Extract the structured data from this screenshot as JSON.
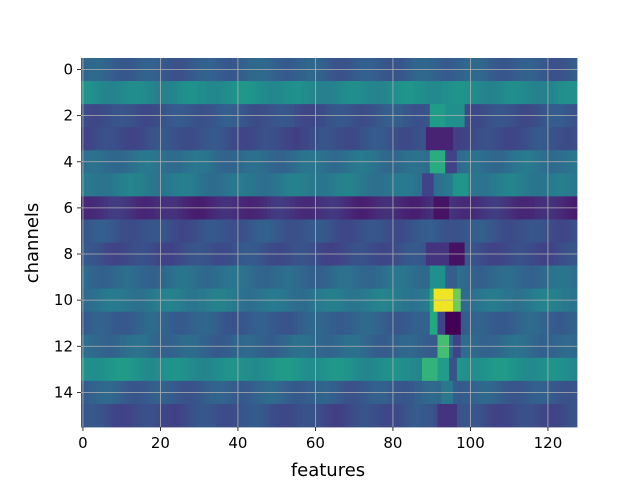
{
  "chart_data": {
    "type": "heatmap",
    "title": "",
    "xlabel": "features",
    "ylabel": "channels",
    "xlim": [
      -0.5,
      127.5
    ],
    "ylim": [
      15.5,
      -0.5
    ],
    "y_inverted": true,
    "grid": true,
    "colormap": "viridis",
    "value_range": [
      0,
      1
    ],
    "x_ticks": [
      0,
      20,
      40,
      60,
      80,
      100,
      120
    ],
    "y_ticks": [
      0,
      2,
      4,
      6,
      8,
      10,
      12,
      14
    ],
    "n_features": 128,
    "n_channels": 16,
    "row_base_values": [
      0.3,
      0.48,
      0.26,
      0.24,
      0.36,
      0.4,
      0.13,
      0.26,
      0.24,
      0.35,
      0.4,
      0.3,
      0.33,
      0.5,
      0.3,
      0.24
    ],
    "cells": [
      {
        "channel": 2,
        "feature_range": [
          90,
          93
        ],
        "value": 0.55
      },
      {
        "channel": 2,
        "feature_range": [
          94,
          98
        ],
        "value": 0.5
      },
      {
        "channel": 3,
        "feature_range": [
          89,
          95
        ],
        "value": 0.1
      },
      {
        "channel": 4,
        "feature_range": [
          90,
          93
        ],
        "value": 0.62
      },
      {
        "channel": 4,
        "feature_range": [
          94,
          96
        ],
        "value": 0.2
      },
      {
        "channel": 5,
        "feature_range": [
          88,
          90
        ],
        "value": 0.2
      },
      {
        "channel": 5,
        "feature_range": [
          96,
          99
        ],
        "value": 0.52
      },
      {
        "channel": 6,
        "feature_range": [
          91,
          94
        ],
        "value": 0.05
      },
      {
        "channel": 8,
        "feature_range": [
          89,
          94
        ],
        "value": 0.15
      },
      {
        "channel": 8,
        "feature_range": [
          95,
          98
        ],
        "value": 0.05
      },
      {
        "channel": 9,
        "feature_range": [
          90,
          93
        ],
        "value": 0.5
      },
      {
        "channel": 9,
        "feature_range": [
          94,
          96
        ],
        "value": 0.3
      },
      {
        "channel": 10,
        "feature_range": [
          90,
          90
        ],
        "value": 0.6
      },
      {
        "channel": 10,
        "feature_range": [
          91,
          95
        ],
        "value": 0.98
      },
      {
        "channel": 10,
        "feature_range": [
          96,
          97
        ],
        "value": 0.78
      },
      {
        "channel": 11,
        "feature_range": [
          90,
          91
        ],
        "value": 0.6
      },
      {
        "channel": 11,
        "feature_range": [
          92,
          93
        ],
        "value": 0.2
      },
      {
        "channel": 11,
        "feature_range": [
          94,
          97
        ],
        "value": 0.0
      },
      {
        "channel": 12,
        "feature_range": [
          92,
          94
        ],
        "value": 0.7
      },
      {
        "channel": 12,
        "feature_range": [
          96,
          97
        ],
        "value": 0.2
      },
      {
        "channel": 13,
        "feature_range": [
          88,
          91
        ],
        "value": 0.65
      },
      {
        "channel": 13,
        "feature_range": [
          92,
          94
        ],
        "value": 0.55
      },
      {
        "channel": 13,
        "feature_range": [
          95,
          96
        ],
        "value": 0.25
      },
      {
        "channel": 14,
        "feature_range": [
          93,
          95
        ],
        "value": 0.4
      },
      {
        "channel": 15,
        "feature_range": [
          92,
          96
        ],
        "value": 0.15
      }
    ],
    "colors": {
      "grid": "#b0b0b0",
      "text": "#000000",
      "background": "#ffffff"
    }
  }
}
